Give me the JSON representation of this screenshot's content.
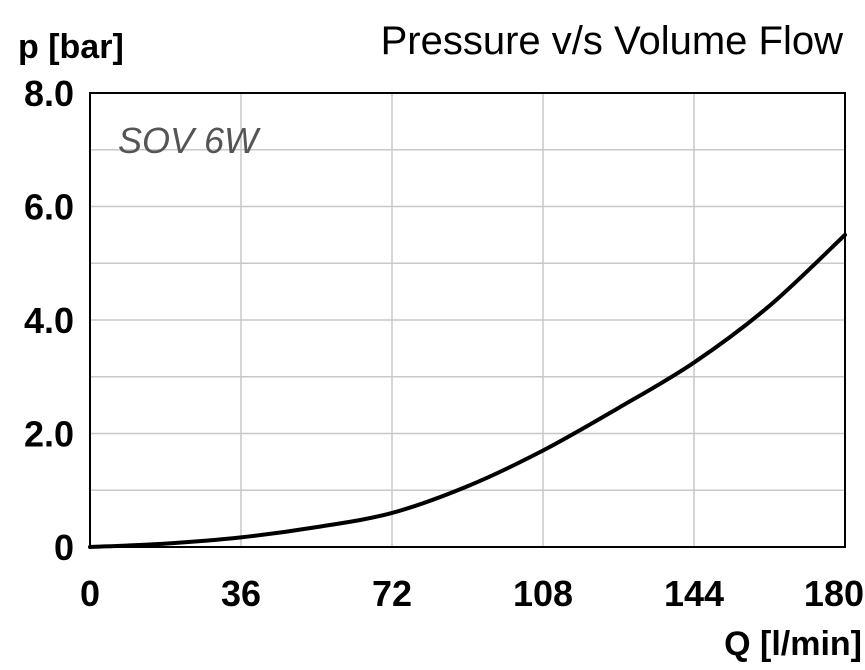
{
  "chart_data": {
    "type": "line",
    "title": "Pressure v/s Volume Flow",
    "ylabel": "p [bar]",
    "xlabel": "Q [l/min]",
    "annotation": "SOV 6W",
    "xlim": [
      0,
      180
    ],
    "ylim": [
      0,
      8
    ],
    "x_ticks": [
      0,
      36,
      72,
      108,
      144,
      180
    ],
    "y_ticks": [
      0,
      2,
      4,
      6,
      8
    ],
    "y_tick_labels": [
      "0",
      "2.0",
      "4.0",
      "6.0",
      "8.0"
    ],
    "grid": true,
    "series": [
      {
        "color": "#000000",
        "x": [
          0,
          18,
          36,
          54,
          72,
          90,
          108,
          126,
          144,
          162,
          180
        ],
        "y": [
          0,
          0.06,
          0.17,
          0.35,
          0.6,
          1.07,
          1.7,
          2.45,
          3.25,
          4.25,
          5.5
        ]
      }
    ]
  }
}
